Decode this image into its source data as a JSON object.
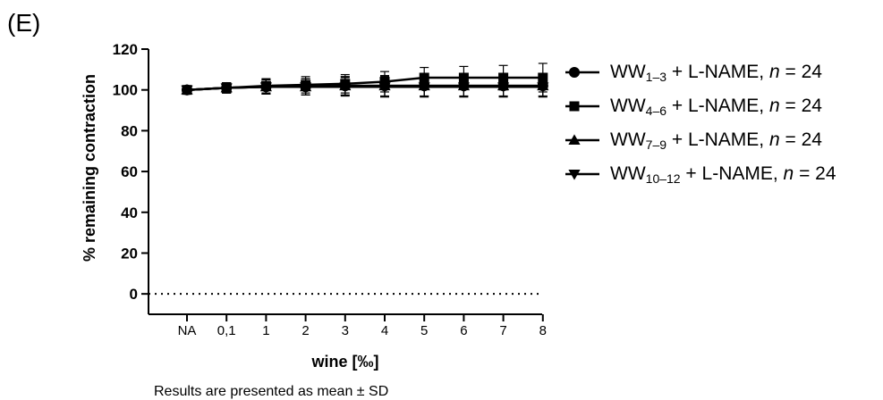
{
  "figure": {
    "panel_label": "(E)",
    "footnote": "Results are presented as mean ± SD"
  },
  "legend": [
    {
      "prefix": "WW",
      "sub": "1–3",
      "suffix": " + L-NAME, ",
      "n_label": "n",
      "n_value": " = 24",
      "marker": "circle"
    },
    {
      "prefix": "WW",
      "sub": "4–6",
      "suffix": " + L-NAME, ",
      "n_label": "n",
      "n_value": " = 24",
      "marker": "square"
    },
    {
      "prefix": "WW",
      "sub": "7–9",
      "suffix": " + L-NAME, ",
      "n_label": "n",
      "n_value": " = 24",
      "marker": "triangle-up"
    },
    {
      "prefix": "WW",
      "sub": "10–12",
      "suffix": " + L-NAME, ",
      "n_label": "n",
      "n_value": " = 24",
      "marker": "triangle-down"
    }
  ],
  "chart_data": {
    "type": "line",
    "xlabel": "wine [‰]",
    "ylabel": "% remaining contraction",
    "categories": [
      "NA",
      "0,1",
      "1",
      "2",
      "3",
      "4",
      "5",
      "6",
      "7",
      "8"
    ],
    "ylim": [
      -10,
      120
    ],
    "yticks": [
      0,
      20,
      40,
      60,
      80,
      100,
      120
    ],
    "reference_line": {
      "y": 0,
      "style": "dotted"
    },
    "error_bars": "mean ± SD",
    "series": [
      {
        "name": "WW1–3 + L-NAME, n = 24",
        "marker": "circle",
        "values": [
          100,
          101,
          101.5,
          101.5,
          102,
          102,
          102,
          102,
          102,
          102
        ],
        "errors": [
          1.5,
          2.5,
          3.5,
          4,
          4.5,
          5,
          5,
          5,
          5,
          5
        ]
      },
      {
        "name": "WW4–6 + L-NAME, n = 24",
        "marker": "square",
        "values": [
          100,
          101,
          102,
          102.5,
          103,
          104,
          106,
          106,
          106,
          106
        ],
        "errors": [
          1.5,
          2.5,
          3.5,
          4,
          4.5,
          5,
          5,
          5.5,
          6,
          7
        ]
      },
      {
        "name": "WW7–9 + L-NAME, n = 24",
        "marker": "triangle-up",
        "values": [
          100,
          101,
          101.5,
          101.5,
          102,
          102,
          102,
          102,
          102,
          102
        ],
        "errors": [
          1.5,
          2.5,
          3.5,
          4,
          4.5,
          5,
          5,
          5,
          5,
          5
        ]
      },
      {
        "name": "WW10–12 + L-NAME, n = 24",
        "marker": "triangle-down",
        "values": [
          100,
          101,
          101.5,
          101.5,
          101.5,
          101.5,
          101.5,
          101.5,
          101.5,
          101.5
        ],
        "errors": [
          1.5,
          2.5,
          3.5,
          4,
          4.5,
          5,
          5,
          5,
          5,
          5
        ]
      }
    ]
  }
}
